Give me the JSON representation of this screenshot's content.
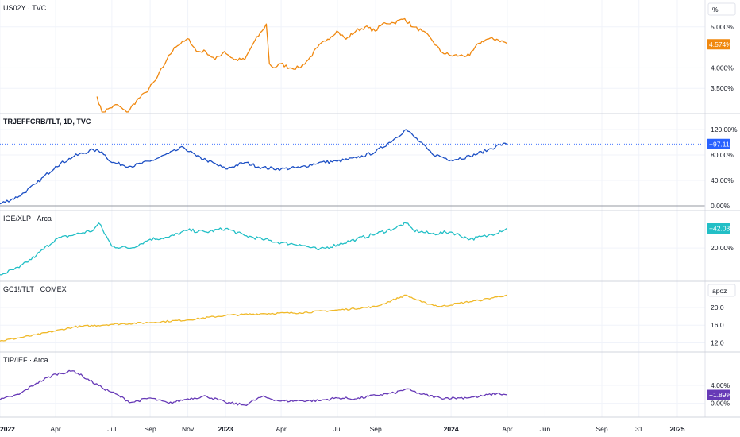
{
  "x_axis": {
    "labels": [
      {
        "text": "2022",
        "date": "2022-01-01",
        "bold": true
      },
      {
        "text": "Apr",
        "date": "2022-04-01",
        "bold": false
      },
      {
        "text": "Jul",
        "date": "2022-07-01",
        "bold": false
      },
      {
        "text": "Sep",
        "date": "2022-09-01",
        "bold": false
      },
      {
        "text": "Nov",
        "date": "2022-11-01",
        "bold": false
      },
      {
        "text": "2023",
        "date": "2023-01-01",
        "bold": true
      },
      {
        "text": "Apr",
        "date": "2023-04-01",
        "bold": false
      },
      {
        "text": "Jul",
        "date": "2023-07-01",
        "bold": false
      },
      {
        "text": "Sep",
        "date": "2023-09-01",
        "bold": false
      },
      {
        "text": "2024",
        "date": "2024-01-01",
        "bold": true
      },
      {
        "text": "Apr",
        "date": "2024-04-01",
        "bold": false
      },
      {
        "text": "Jun",
        "date": "2024-06-01",
        "bold": false
      },
      {
        "text": "Sep",
        "date": "2024-09-01",
        "bold": false
      },
      {
        "text": "31",
        "date": "2024-10-31",
        "bold": false
      },
      {
        "text": "2025",
        "date": "2025-01-01",
        "bold": true
      }
    ],
    "range": [
      "2022-01-01",
      "2025-02-15"
    ]
  },
  "chart_data": [
    {
      "type": "line",
      "title": "US02Y · TVC",
      "title_bold": false,
      "unit_label": "%",
      "yticks": [
        "5.000%",
        "4.000%",
        "3.500%"
      ],
      "ytick_values": [
        5.0,
        4.0,
        3.5
      ],
      "ylim": [
        3.0,
        5.5
      ],
      "last_value_label": "4.574%",
      "last_value": 4.574,
      "color": "#f0880f",
      "series": [
        {
          "x": [
            "2022-06-07",
            "2022-06-15",
            "2022-06-25",
            "2022-07-10",
            "2022-07-25",
            "2022-08-10",
            "2022-08-25",
            "2022-09-10",
            "2022-09-28",
            "2022-10-10",
            "2022-10-21",
            "2022-11-03",
            "2022-11-15",
            "2022-11-30",
            "2022-12-15",
            "2022-12-30",
            "2023-01-15",
            "2023-02-01",
            "2023-02-15",
            "2023-03-01",
            "2023-03-08",
            "2023-03-13",
            "2023-03-20",
            "2023-03-31",
            "2023-04-15",
            "2023-04-30",
            "2023-05-15",
            "2023-05-30",
            "2023-06-15",
            "2023-06-30",
            "2023-07-15",
            "2023-07-31",
            "2023-08-15",
            "2023-08-31",
            "2023-09-15",
            "2023-09-30",
            "2023-10-18",
            "2023-10-31",
            "2023-11-15",
            "2023-11-30",
            "2023-12-15",
            "2023-12-31",
            "2024-01-15",
            "2024-01-31",
            "2024-02-15",
            "2024-02-28",
            "2024-03-15",
            "2024-03-31"
          ],
          "values": [
            3.3,
            2.9,
            3.0,
            3.1,
            2.9,
            3.2,
            3.4,
            3.7,
            4.2,
            4.5,
            4.6,
            4.7,
            4.4,
            4.4,
            4.2,
            4.4,
            4.2,
            4.2,
            4.6,
            4.9,
            5.07,
            4.1,
            4.0,
            4.1,
            4.0,
            4.0,
            4.2,
            4.5,
            4.7,
            4.9,
            4.7,
            4.9,
            5.0,
            4.9,
            5.1,
            5.1,
            5.2,
            5.0,
            4.9,
            4.7,
            4.4,
            4.3,
            4.3,
            4.3,
            4.6,
            4.7,
            4.7,
            4.6
          ]
        }
      ]
    },
    {
      "type": "line",
      "title": "TRJEFFCRB/TLT, 1D, TVC",
      "title_bold": true,
      "yticks": [
        "120.00%",
        "80.00%",
        "40.00%",
        "0.00%"
      ],
      "ytick_values": [
        120,
        80,
        40,
        0
      ],
      "ylim": [
        0,
        135
      ],
      "last_value_label": "+97.11%",
      "last_value": 97.11,
      "color": "#2962ff",
      "line_color": "#1c4fc4",
      "series": [
        {
          "x": [
            "2022-01-01",
            "2022-02-01",
            "2022-03-01",
            "2022-04-01",
            "2022-05-01",
            "2022-06-01",
            "2022-06-15",
            "2022-07-01",
            "2022-08-01",
            "2022-09-01",
            "2022-10-01",
            "2022-10-25",
            "2022-11-15",
            "2022-12-01",
            "2023-01-01",
            "2023-02-01",
            "2023-03-01",
            "2023-04-01",
            "2023-05-01",
            "2023-06-01",
            "2023-07-01",
            "2023-08-01",
            "2023-09-01",
            "2023-10-01",
            "2023-10-20",
            "2023-11-01",
            "2023-12-01",
            "2024-01-01",
            "2024-02-01",
            "2024-03-01",
            "2024-03-20",
            "2024-03-31"
          ],
          "values": [
            3,
            15,
            35,
            62,
            78,
            88,
            85,
            68,
            62,
            70,
            82,
            92,
            78,
            72,
            58,
            68,
            60,
            58,
            60,
            68,
            70,
            75,
            85,
            105,
            120,
            110,
            82,
            72,
            78,
            88,
            96,
            97.1
          ]
        }
      ]
    },
    {
      "type": "line",
      "title": "IGE/XLP · Arca",
      "title_bold": false,
      "yticks": [
        "20.00%"
      ],
      "ytick_values": [
        20
      ],
      "ylim": [
        -12,
        55
      ],
      "last_value_label": "+42.03%",
      "last_value": 42.03,
      "color": "#22bfc6",
      "series": [
        {
          "x": [
            "2022-01-01",
            "2022-02-01",
            "2022-03-01",
            "2022-04-01",
            "2022-05-01",
            "2022-06-01",
            "2022-06-10",
            "2022-07-01",
            "2022-08-01",
            "2022-09-01",
            "2022-10-01",
            "2022-11-01",
            "2022-12-01",
            "2023-01-01",
            "2023-02-01",
            "2023-03-01",
            "2023-04-01",
            "2023-05-01",
            "2023-06-01",
            "2023-07-01",
            "2023-08-01",
            "2023-09-01",
            "2023-10-01",
            "2023-10-20",
            "2023-11-01",
            "2023-12-01",
            "2024-01-01",
            "2024-02-01",
            "2024-03-01",
            "2024-03-31"
          ],
          "values": [
            -10,
            -2,
            12,
            30,
            35,
            40,
            48,
            22,
            20,
            30,
            32,
            40,
            38,
            42,
            34,
            30,
            26,
            24,
            18,
            24,
            30,
            36,
            42,
            48,
            40,
            36,
            38,
            30,
            34,
            42
          ]
        }
      ]
    },
    {
      "type": "line",
      "title": "GC1!/TLT · COMEX",
      "title_bold": false,
      "unit_label": "apoz",
      "yticks": [
        "20.0",
        "16.0",
        "12.0"
      ],
      "ytick_values": [
        20,
        16,
        12
      ],
      "ylim": [
        11,
        24.5
      ],
      "color": "#f0b929",
      "series": [
        {
          "x": [
            "2022-01-01",
            "2022-03-01",
            "2022-05-01",
            "2022-07-01",
            "2022-09-01",
            "2022-11-01",
            "2023-01-01",
            "2023-03-01",
            "2023-05-01",
            "2023-07-01",
            "2023-09-01",
            "2023-10-20",
            "2023-11-15",
            "2023-12-15",
            "2024-01-15",
            "2024-02-15",
            "2024-03-15",
            "2024-03-31"
          ],
          "values": [
            12.4,
            13.8,
            15.6,
            16.2,
            16.6,
            17.2,
            18.2,
            18.6,
            18.8,
            19.4,
            20.2,
            22.8,
            21.2,
            20.2,
            21.0,
            21.6,
            22.4,
            22.8
          ]
        }
      ]
    },
    {
      "type": "line",
      "title": "TIP/IEF · Arca",
      "title_bold": false,
      "yticks": [
        "4.00%",
        "0.00%"
      ],
      "ytick_values": [
        4,
        0
      ],
      "ylim": [
        -2,
        10
      ],
      "last_value_label": "+1.89%",
      "last_value": 1.89,
      "color": "#673ab7",
      "series": [
        {
          "x": [
            "2022-01-01",
            "2022-02-01",
            "2022-03-01",
            "2022-04-01",
            "2022-05-01",
            "2022-05-15",
            "2022-06-15",
            "2022-07-01",
            "2022-08-01",
            "2022-09-01",
            "2022-10-01",
            "2022-11-01",
            "2022-12-01",
            "2023-01-01",
            "2023-02-01",
            "2023-03-01",
            "2023-04-01",
            "2023-05-01",
            "2023-06-01",
            "2023-07-01",
            "2023-08-01",
            "2023-09-01",
            "2023-10-01",
            "2023-10-20",
            "2023-11-15",
            "2023-12-15",
            "2024-01-15",
            "2024-02-15",
            "2024-03-15",
            "2024-03-31"
          ],
          "values": [
            0.8,
            2.0,
            4.5,
            6.5,
            7.2,
            6.0,
            3.5,
            2.5,
            0.2,
            1.2,
            0.0,
            1.0,
            1.6,
            0.2,
            -0.4,
            1.5,
            0.5,
            0.6,
            0.6,
            1.2,
            1.0,
            1.8,
            2.3,
            3.2,
            2.0,
            1.2,
            1.2,
            1.5,
            2.2,
            1.9
          ]
        }
      ]
    }
  ]
}
